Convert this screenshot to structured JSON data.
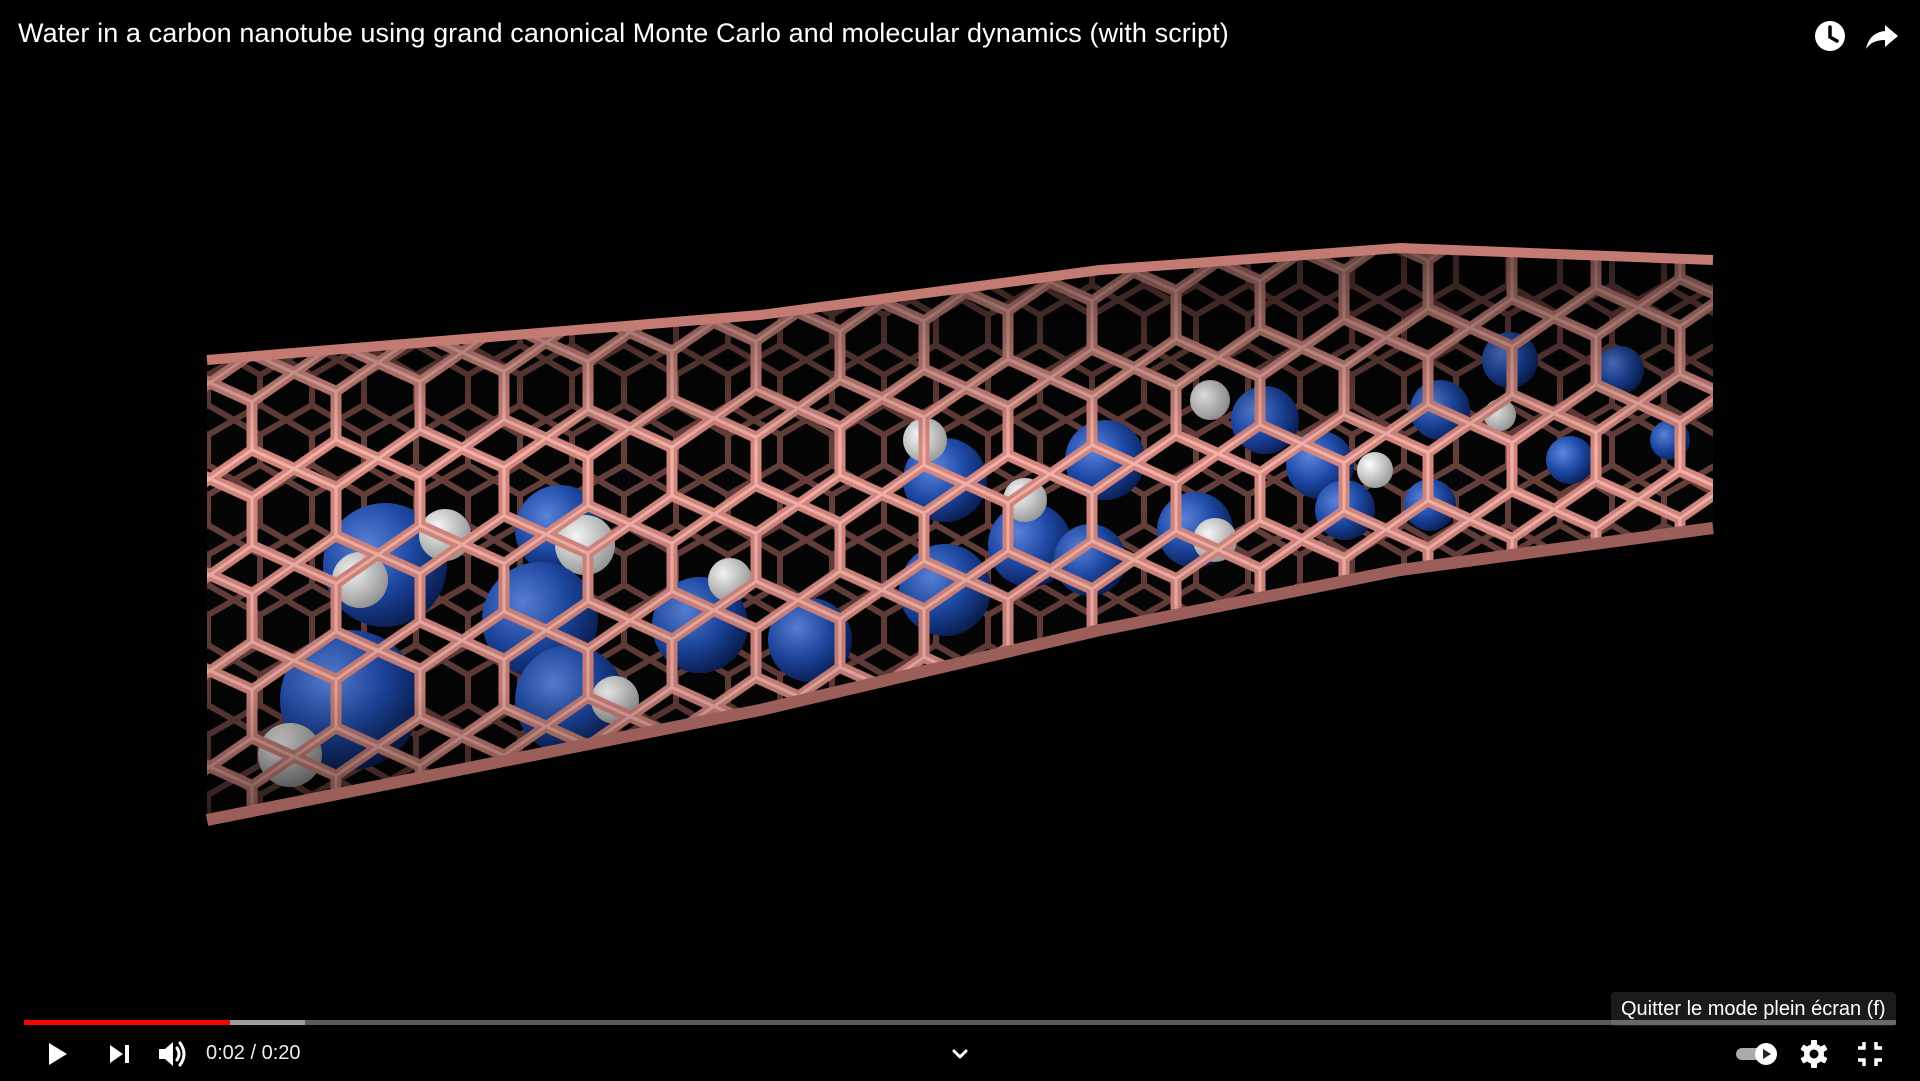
{
  "header": {
    "title": "Water in a carbon nanotube using grand canonical Monte Carlo and molecular dynamics (with script)",
    "icons": {
      "watch_later": "clock-icon",
      "share": "share-arrow-icon"
    }
  },
  "player": {
    "progress_played_fraction": 0.11,
    "progress_loaded_fraction": 0.15,
    "colors": {
      "progress_played": "#ff0000",
      "nanotube": "#d4877f",
      "oxygen": "#1e4aa8",
      "hydrogen": "#e6e6e6"
    },
    "tooltip": "Quitter le mode plein écran (f)"
  },
  "controls": {
    "current_time": "0:02",
    "separator": "/",
    "duration": "0:20",
    "icons": {
      "play": "play-icon",
      "next": "next-icon",
      "volume": "volume-icon",
      "chapters": "chevron-down-icon",
      "autoplay": "autoplay-toggle-icon",
      "settings": "gear-icon",
      "fullscreen_exit": "exit-fullscreen-icon"
    }
  }
}
